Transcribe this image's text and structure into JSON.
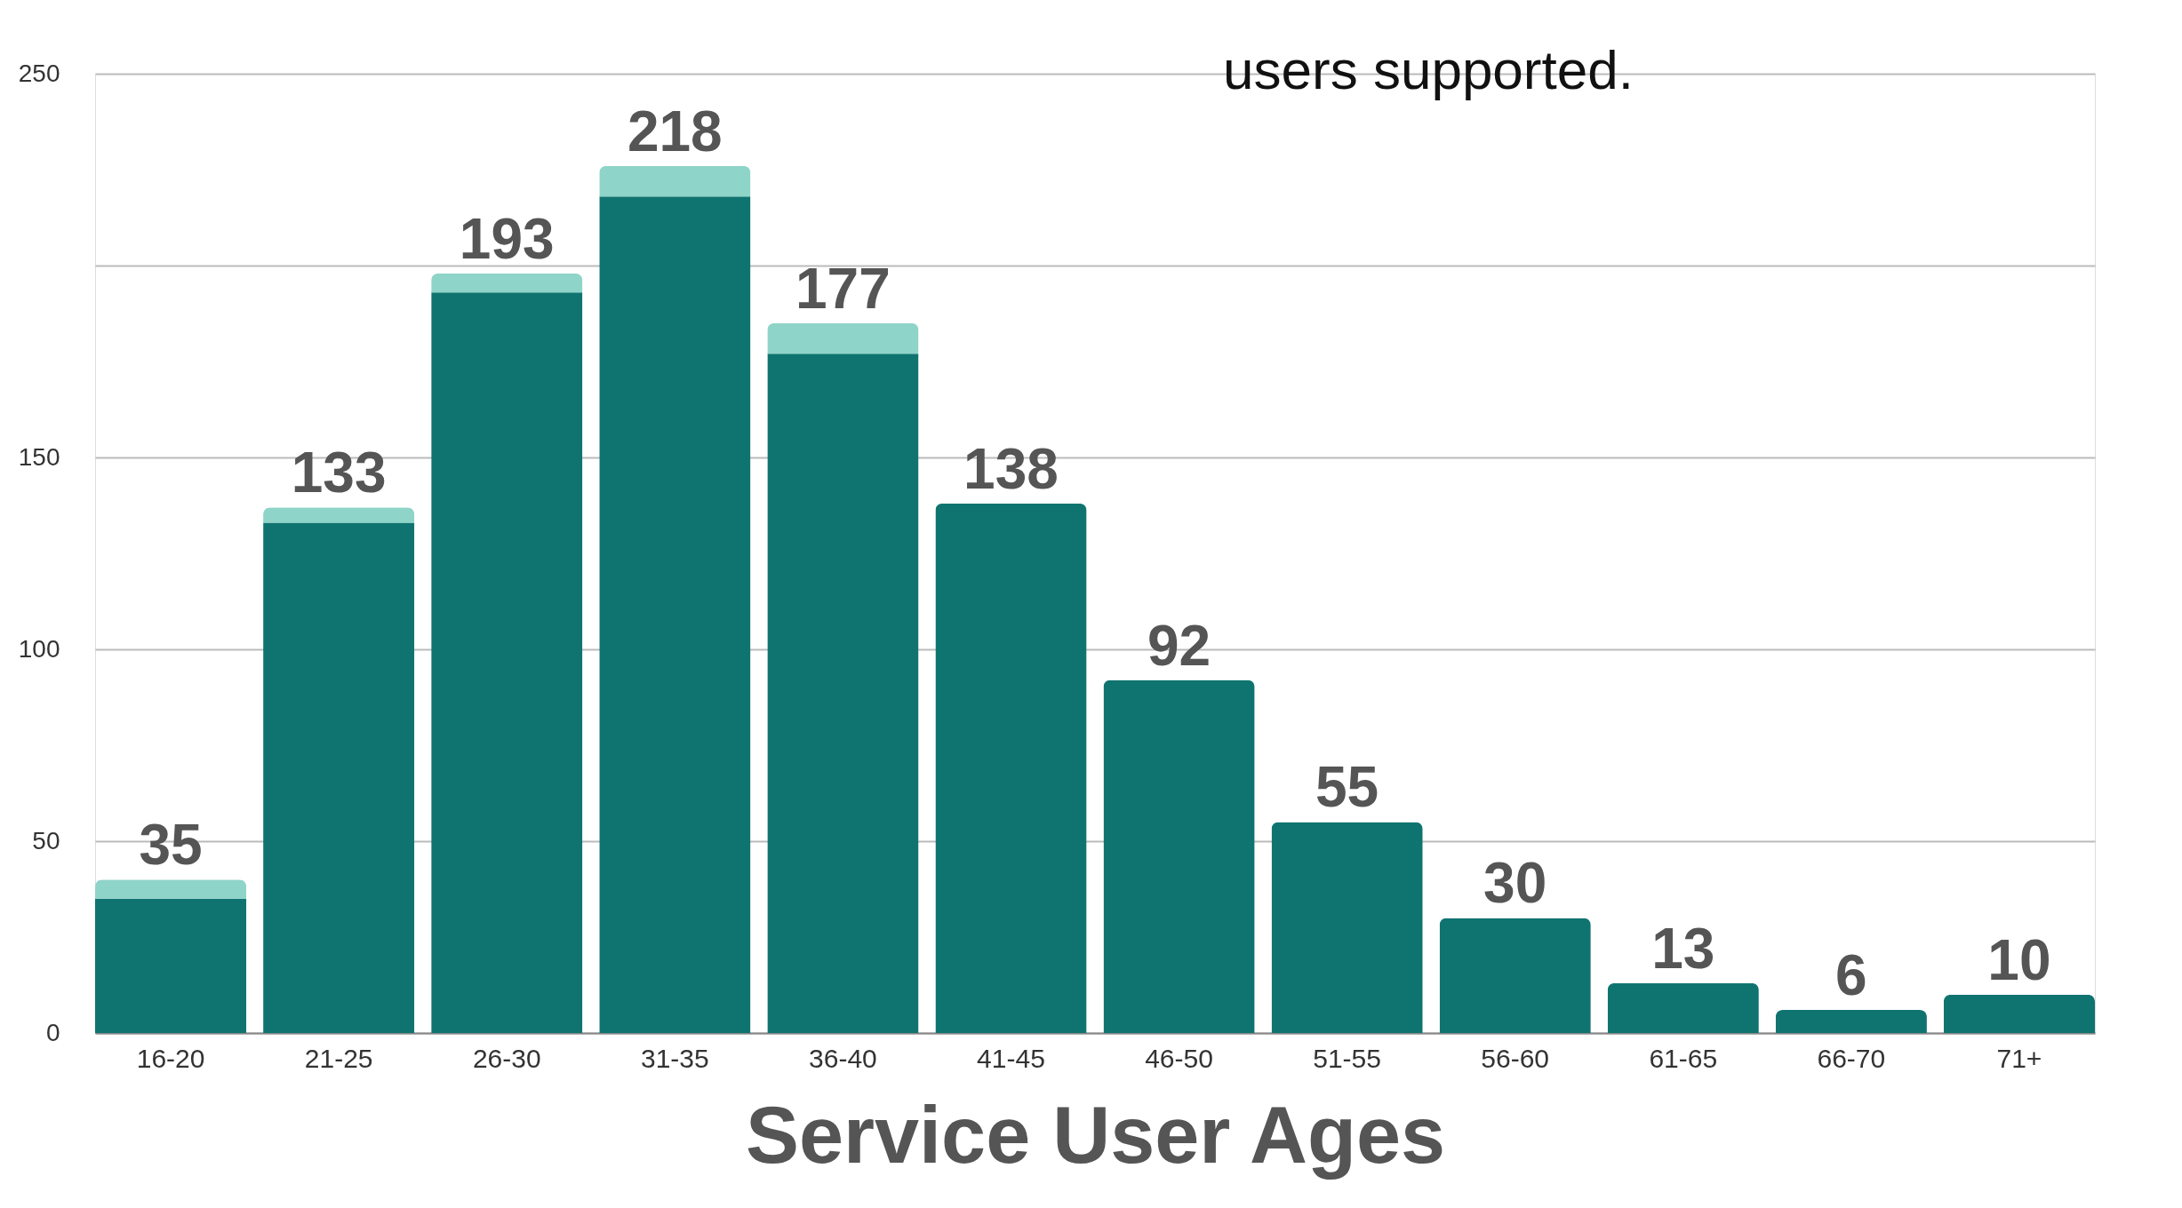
{
  "chart_data": {
    "type": "bar",
    "stacked": true,
    "xlabel": "Service User Ages",
    "annotations": [
      "users supported."
    ],
    "categories": [
      "16-20",
      "21-25",
      "26-30",
      "31-35",
      "36-40",
      "41-45",
      "46-50",
      "51-55",
      "56-60",
      "61-65",
      "66-70",
      "71+"
    ],
    "series": [
      {
        "color": "#0f7470",
        "values": [
          35,
          133,
          193,
          218,
          177,
          138,
          92,
          55,
          30,
          13,
          6,
          10
        ],
        "value_labels": [
          "35",
          "133",
          "193",
          "218",
          "177",
          "138",
          "92",
          "55",
          "30",
          "13",
          "6",
          "10"
        ]
      },
      {
        "color": "#8ed4c8",
        "values": [
          5,
          4,
          5,
          8,
          8,
          null,
          null,
          null,
          null,
          null,
          null,
          null
        ]
      }
    ],
    "ylim": [
      0,
      250
    ],
    "yticks": [
      0,
      50,
      100,
      150,
      {
        "value": 200,
        "label": null
      },
      250
    ],
    "grid": "y"
  }
}
